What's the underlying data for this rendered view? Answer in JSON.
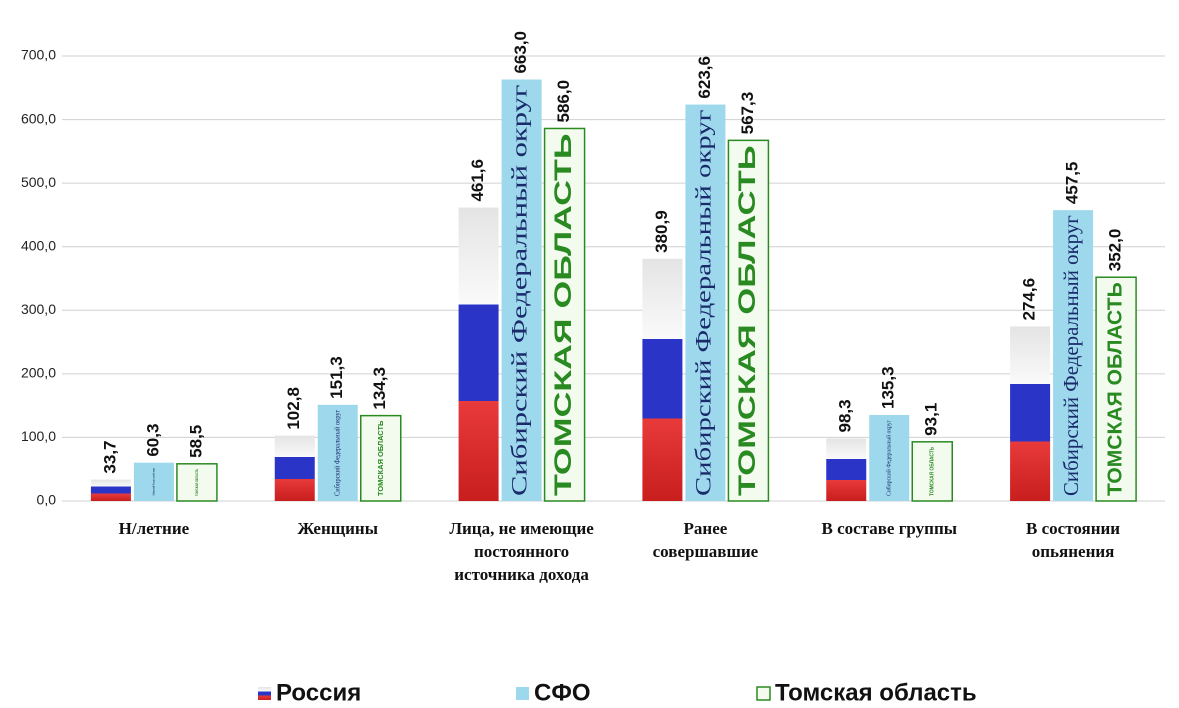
{
  "chart_data": {
    "type": "bar",
    "categories": [
      "Н/летние",
      "Женщины",
      "Лица, не имеющие постоянного источника дохода",
      "Ранее совершавшие",
      "В составе группы",
      "В состоянии опьянения"
    ],
    "series": [
      {
        "name": "Россия",
        "color": "#2a35c8",
        "values": [
          33.7,
          102.8,
          461.6,
          380.9,
          98.3,
          274.6
        ],
        "value_labels": [
          "33,7",
          "102,8",
          "461,6",
          "380,9",
          "98,3",
          "274,6"
        ]
      },
      {
        "name": "СФО",
        "color": "#9dd8ec",
        "bar_label": "Сибирский Федеральный округ",
        "values": [
          60.3,
          151.3,
          663.0,
          623.6,
          135.3,
          457.5
        ],
        "value_labels": [
          "60,3",
          "151,3",
          "663,0",
          "623,6",
          "135,3",
          "457,5"
        ]
      },
      {
        "name": "Томская область",
        "color": "#2a8a22",
        "bar_label": "ТОМСКАЯ ОБЛАСТЬ",
        "values": [
          58.5,
          134.3,
          586.0,
          567.3,
          93.1,
          352.0
        ],
        "value_labels": [
          "58,5",
          "134,3",
          "586,0",
          "567,3",
          "93,1",
          "352,0"
        ]
      }
    ],
    "ylim": [
      0,
      700
    ],
    "yticks": [
      {
        "value": 0,
        "label": "0,0"
      },
      {
        "value": 100,
        "label": "100,0"
      },
      {
        "value": 200,
        "label": "200,0"
      },
      {
        "value": 300,
        "label": "300,0"
      },
      {
        "value": 400,
        "label": "400,0"
      },
      {
        "value": 500,
        "label": "500,0"
      },
      {
        "value": 600,
        "label": "600,0"
      },
      {
        "value": 700,
        "label": "700,0"
      }
    ],
    "grid": true,
    "legend": "bottom"
  }
}
